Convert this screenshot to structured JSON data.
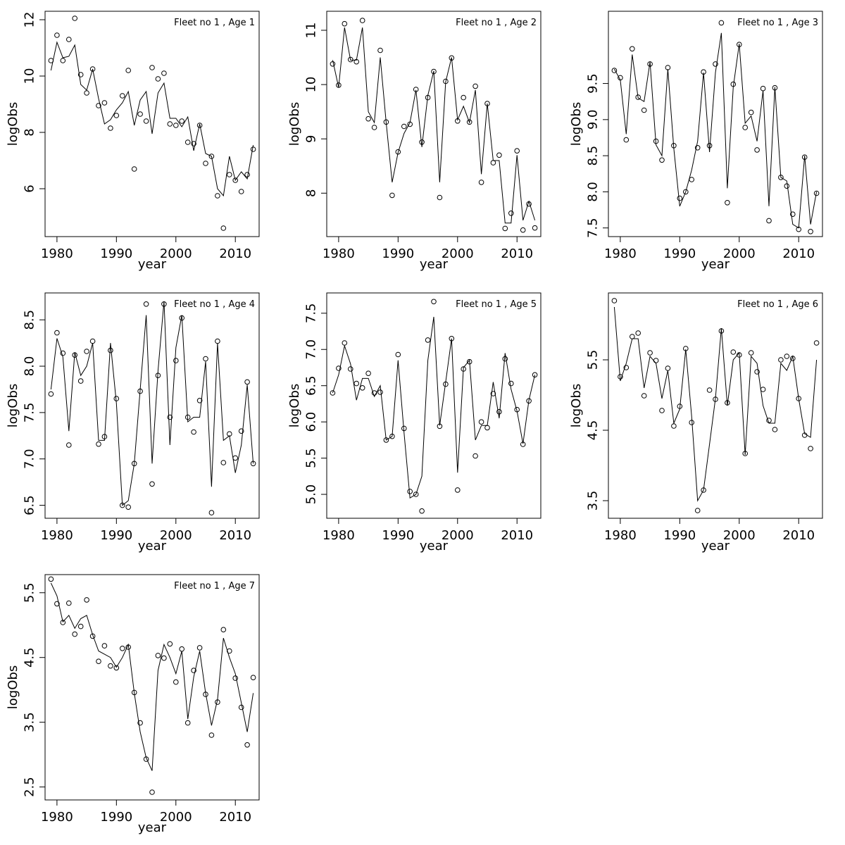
{
  "chart_data": [
    {
      "type": "line",
      "title": "Fleet no 1 , Age 1",
      "xlabel": "year",
      "ylabel": "logObs",
      "xlim": [
        1978,
        2014
      ],
      "ylim": [
        4.3,
        12.3
      ],
      "xticks": [
        1980,
        1990,
        2000,
        2010
      ],
      "yticks": [
        6,
        8,
        10,
        12
      ],
      "x": [
        1979,
        1980,
        1981,
        1982,
        1983,
        1984,
        1985,
        1986,
        1987,
        1988,
        1989,
        1990,
        1991,
        1992,
        1993,
        1994,
        1995,
        1996,
        1997,
        1998,
        1999,
        2000,
        2001,
        2002,
        2003,
        2004,
        2005,
        2006,
        2007,
        2008,
        2009,
        2010,
        2011,
        2012,
        2013
      ],
      "series": [
        {
          "style": "points",
          "values": [
            10.55,
            11.45,
            10.55,
            11.3,
            12.05,
            10.05,
            9.4,
            10.25,
            8.95,
            9.05,
            8.15,
            8.6,
            9.3,
            10.2,
            6.7,
            8.65,
            8.4,
            10.3,
            9.9,
            10.1,
            8.3,
            8.25,
            8.4,
            7.65,
            7.6,
            8.25,
            6.9,
            7.15,
            5.75,
            4.6,
            6.5,
            6.3,
            5.9,
            6.5,
            7.4
          ]
        },
        {
          "style": "line",
          "values": [
            10.2,
            11.2,
            10.65,
            10.7,
            11.1,
            9.7,
            9.5,
            10.25,
            9.2,
            8.3,
            8.45,
            8.8,
            9.05,
            9.45,
            8.25,
            9.15,
            9.45,
            7.95,
            9.4,
            9.75,
            8.5,
            8.5,
            8.2,
            8.55,
            7.35,
            8.3,
            7.25,
            7.15,
            6.0,
            5.75,
            7.15,
            6.3,
            6.6,
            6.35,
            7.55
          ]
        }
      ]
    },
    {
      "type": "line",
      "title": "Fleet no 1 , Age 2",
      "xlabel": "year",
      "ylabel": "logObs",
      "xlim": [
        1978,
        2014
      ],
      "ylim": [
        7.2,
        11.35
      ],
      "xticks": [
        1980,
        1990,
        2000,
        2010
      ],
      "yticks": [
        8,
        9,
        10,
        11
      ],
      "x": [
        1979,
        1980,
        1981,
        1982,
        1983,
        1984,
        1985,
        1986,
        1987,
        1988,
        1989,
        1990,
        1991,
        1992,
        1993,
        1994,
        1995,
        1996,
        1997,
        1998,
        1999,
        2000,
        2001,
        2002,
        2003,
        2004,
        2005,
        2006,
        2007,
        2008,
        2009,
        2010,
        2011,
        2012,
        2013
      ],
      "series": [
        {
          "style": "points",
          "values": [
            10.38,
            9.99,
            11.12,
            10.46,
            10.42,
            11.18,
            9.37,
            9.21,
            10.63,
            9.31,
            7.96,
            8.76,
            9.23,
            9.27,
            9.91,
            8.94,
            9.76,
            10.24,
            7.92,
            10.06,
            10.49,
            9.33,
            9.76,
            9.31,
            9.97,
            8.2,
            9.65,
            8.56,
            8.7,
            7.35,
            7.63,
            8.78,
            7.32,
            7.8,
            7.36
          ]
        },
        {
          "style": "line",
          "values": [
            10.45,
            9.95,
            11.05,
            10.45,
            10.45,
            11.05,
            9.5,
            9.3,
            10.5,
            9.3,
            8.2,
            8.75,
            9.1,
            9.3,
            9.9,
            8.85,
            9.8,
            10.25,
            8.2,
            10.05,
            10.5,
            9.35,
            9.6,
            9.3,
            9.9,
            8.35,
            9.65,
            8.6,
            8.6,
            7.45,
            7.45,
            8.7,
            7.5,
            7.85,
            7.5
          ]
        }
      ]
    },
    {
      "type": "line",
      "title": "Fleet no 1 , Age 3",
      "xlabel": "year",
      "ylabel": "logObs",
      "xlim": [
        1978,
        2014
      ],
      "ylim": [
        7.38,
        10.5
      ],
      "xticks": [
        1980,
        1990,
        2000,
        2010
      ],
      "yticks": [
        7.5,
        8.0,
        8.5,
        9.0,
        9.5
      ],
      "x": [
        1979,
        1980,
        1981,
        1982,
        1983,
        1984,
        1985,
        1986,
        1987,
        1988,
        1989,
        1990,
        1991,
        1992,
        1993,
        1994,
        1995,
        1996,
        1997,
        1998,
        1999,
        2000,
        2001,
        2002,
        2003,
        2004,
        2005,
        2006,
        2007,
        2008,
        2009,
        2010,
        2011,
        2012,
        2013
      ],
      "series": [
        {
          "style": "points",
          "values": [
            9.68,
            9.58,
            8.72,
            9.98,
            9.31,
            9.13,
            9.77,
            8.7,
            8.44,
            9.72,
            8.64,
            7.91,
            8.0,
            8.17,
            8.61,
            9.66,
            8.64,
            9.77,
            10.34,
            7.85,
            9.49,
            10.04,
            8.89,
            9.1,
            8.58,
            9.43,
            7.6,
            9.44,
            8.2,
            8.08,
            7.69,
            7.48,
            8.48,
            7.45,
            7.98
          ]
        },
        {
          "style": "line",
          "values": [
            9.7,
            9.55,
            8.8,
            9.9,
            9.3,
            9.25,
            9.8,
            8.65,
            8.5,
            9.7,
            8.6,
            7.8,
            8.0,
            8.3,
            8.7,
            9.65,
            8.55,
            9.65,
            10.2,
            8.05,
            9.45,
            10.05,
            8.95,
            9.05,
            8.7,
            9.4,
            7.8,
            9.45,
            8.2,
            8.15,
            7.55,
            7.5,
            8.5,
            7.55,
            8.0
          ]
        }
      ]
    },
    {
      "type": "line",
      "title": "Fleet no 1 , Age 4",
      "xlabel": "year",
      "ylabel": "logObs",
      "xlim": [
        1978,
        2014
      ],
      "ylim": [
        6.36,
        8.79
      ],
      "xticks": [
        1980,
        1990,
        2000,
        2010
      ],
      "yticks": [
        6.5,
        7.0,
        7.5,
        8.0,
        8.5
      ],
      "x": [
        1979,
        1980,
        1981,
        1982,
        1983,
        1984,
        1985,
        1986,
        1987,
        1988,
        1989,
        1990,
        1991,
        1992,
        1993,
        1994,
        1995,
        1996,
        1997,
        1998,
        1999,
        2000,
        2001,
        2002,
        2003,
        2004,
        2005,
        2006,
        2007,
        2008,
        2009,
        2010,
        2011,
        2012,
        2013
      ],
      "series": [
        {
          "style": "points",
          "values": [
            7.7,
            8.36,
            8.14,
            7.15,
            8.12,
            7.84,
            8.16,
            8.27,
            7.16,
            7.24,
            8.17,
            7.65,
            6.5,
            6.48,
            6.95,
            7.73,
            8.67,
            6.73,
            7.9,
            8.67,
            7.45,
            8.06,
            8.52,
            7.45,
            7.29,
            7.63,
            8.08,
            6.42,
            8.27,
            6.96,
            7.27,
            7.01,
            7.3,
            7.83,
            6.95
          ]
        },
        {
          "style": "line",
          "values": [
            7.75,
            8.3,
            8.1,
            7.3,
            8.15,
            7.9,
            8.0,
            8.25,
            7.2,
            7.2,
            8.25,
            7.6,
            6.5,
            6.55,
            6.95,
            7.75,
            8.55,
            6.95,
            7.95,
            8.7,
            7.15,
            8.2,
            8.55,
            7.4,
            7.45,
            7.45,
            8.05,
            6.7,
            8.25,
            7.2,
            7.25,
            6.85,
            7.15,
            7.8,
            6.95
          ]
        }
      ]
    },
    {
      "type": "line",
      "title": "Fleet no 1 , Age 5",
      "xlabel": "year",
      "ylabel": "logObs",
      "xlim": [
        1978,
        2014
      ],
      "ylim": [
        4.67,
        7.78
      ],
      "xticks": [
        1980,
        1990,
        2000,
        2010
      ],
      "yticks": [
        5.0,
        5.5,
        6.0,
        6.5,
        7.0,
        7.5
      ],
      "x": [
        1979,
        1980,
        1981,
        1982,
        1983,
        1984,
        1985,
        1986,
        1987,
        1988,
        1989,
        1990,
        1991,
        1992,
        1993,
        1994,
        1995,
        1996,
        1997,
        1998,
        1999,
        2000,
        2001,
        2002,
        2003,
        2004,
        2005,
        2006,
        2007,
        2008,
        2009,
        2010,
        2011,
        2012,
        2013
      ],
      "series": [
        {
          "style": "points",
          "values": [
            6.4,
            6.74,
            7.09,
            6.73,
            6.53,
            6.47,
            6.67,
            6.4,
            6.41,
            5.75,
            5.8,
            6.93,
            5.91,
            5.04,
            5.0,
            4.77,
            7.13,
            7.66,
            5.94,
            6.52,
            7.15,
            5.06,
            6.73,
            6.83,
            5.53,
            6.0,
            5.92,
            6.39,
            6.14,
            6.87,
            6.53,
            6.17,
            5.69,
            6.29,
            6.65
          ]
        },
        {
          "style": "line",
          "values": [
            6.4,
            6.65,
            7.05,
            6.8,
            6.3,
            6.6,
            6.6,
            6.35,
            6.5,
            5.75,
            5.8,
            6.85,
            5.85,
            4.95,
            5.0,
            5.25,
            6.85,
            7.45,
            5.95,
            6.55,
            7.15,
            5.3,
            6.75,
            6.85,
            5.75,
            5.95,
            5.95,
            6.55,
            6.05,
            6.95,
            6.45,
            6.15,
            5.7,
            6.3,
            6.65
          ]
        }
      ]
    },
    {
      "type": "line",
      "title": "Fleet no 1 , Age 6",
      "xlabel": "year",
      "ylabel": "logObs",
      "xlim": [
        1978,
        2014
      ],
      "ylim": [
        3.25,
        6.45
      ],
      "xticks": [
        1980,
        1990,
        2000,
        2010
      ],
      "yticks": [
        3.5,
        4.5,
        5.5
      ],
      "x": [
        1979,
        1980,
        1981,
        1982,
        1983,
        1984,
        1985,
        1986,
        1987,
        1988,
        1989,
        1990,
        1991,
        1992,
        1993,
        1994,
        1995,
        1996,
        1997,
        1998,
        1999,
        2000,
        2001,
        2002,
        2003,
        2004,
        2005,
        2006,
        2007,
        2008,
        2009,
        2010,
        2011,
        2012,
        2013
      ],
      "series": [
        {
          "style": "points",
          "values": [
            6.34,
            5.26,
            5.39,
            5.83,
            5.88,
            4.99,
            5.6,
            5.49,
            4.78,
            5.38,
            4.56,
            4.84,
            5.66,
            4.61,
            3.36,
            3.65,
            5.07,
            4.94,
            5.91,
            4.89,
            5.61,
            5.57,
            4.17,
            5.6,
            5.33,
            5.08,
            4.64,
            4.51,
            5.5,
            5.55,
            5.52,
            4.95,
            4.43,
            4.24,
            5.74
          ]
        },
        {
          "style": "line",
          "values": [
            6.25,
            5.2,
            5.45,
            5.8,
            5.8,
            5.1,
            5.55,
            5.45,
            4.95,
            5.35,
            4.6,
            4.8,
            5.65,
            4.7,
            3.5,
            3.65,
            4.3,
            4.95,
            5.95,
            4.85,
            5.5,
            5.6,
            4.15,
            5.55,
            5.45,
            4.85,
            4.6,
            4.6,
            5.45,
            5.35,
            5.55,
            4.95,
            4.45,
            4.4,
            5.5
          ]
        }
      ]
    },
    {
      "type": "line",
      "title": "Fleet no 1 , Age 7",
      "xlabel": "year",
      "ylabel": "logObs",
      "xlim": [
        1978,
        2014
      ],
      "ylim": [
        2.3,
        5.78
      ],
      "xticks": [
        1980,
        1990,
        2000,
        2010
      ],
      "yticks": [
        2.5,
        3.5,
        4.5,
        5.5
      ],
      "x": [
        1979,
        1980,
        1981,
        1982,
        1983,
        1984,
        1985,
        1986,
        1987,
        1988,
        1989,
        1990,
        1991,
        1992,
        1993,
        1994,
        1995,
        1996,
        1997,
        1998,
        1999,
        2000,
        2001,
        2002,
        2003,
        2004,
        2005,
        2006,
        2007,
        2008,
        2009,
        2010,
        2011,
        2012,
        2013
      ],
      "series": [
        {
          "style": "points",
          "values": [
            5.71,
            5.33,
            5.04,
            5.34,
            4.86,
            4.98,
            5.39,
            4.83,
            4.44,
            4.68,
            4.37,
            4.34,
            4.64,
            4.66,
            3.96,
            3.49,
            2.93,
            2.42,
            4.53,
            4.49,
            4.71,
            4.12,
            4.63,
            3.49,
            4.3,
            4.65,
            3.93,
            3.3,
            3.81,
            4.93,
            4.6,
            4.18,
            3.73,
            3.15,
            4.19
          ]
        },
        {
          "style": "line",
          "values": [
            5.65,
            5.45,
            5.05,
            5.15,
            4.95,
            5.1,
            5.15,
            4.85,
            4.6,
            4.55,
            4.5,
            4.35,
            4.5,
            4.7,
            3.95,
            3.35,
            2.95,
            2.75,
            4.3,
            4.7,
            4.5,
            4.25,
            4.6,
            3.55,
            4.2,
            4.6,
            3.95,
            3.45,
            3.85,
            4.8,
            4.5,
            4.25,
            3.8,
            3.35,
            3.95
          ]
        }
      ]
    }
  ]
}
